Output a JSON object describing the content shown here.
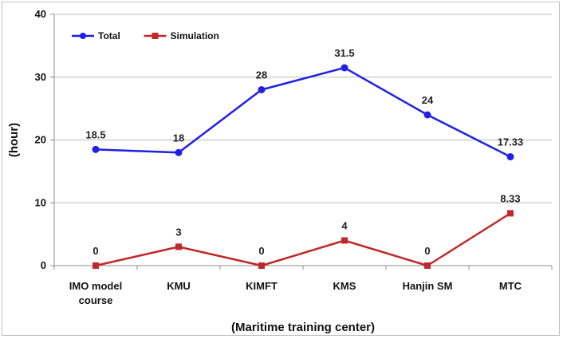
{
  "chart_data": {
    "type": "line",
    "categories": [
      [
        "IMO model",
        "course"
      ],
      [
        "KMU"
      ],
      [
        "KIMFT"
      ],
      [
        "KMS"
      ],
      [
        "Hanjin SM"
      ],
      [
        "MTC"
      ]
    ],
    "series": [
      {
        "name": "Total",
        "values": [
          18.5,
          18,
          28,
          31.5,
          24,
          17.33
        ],
        "labels": [
          "18.5",
          "18",
          "28",
          "31.5",
          "24",
          "17.33"
        ],
        "color": "#1f1fe6",
        "marker": "circle"
      },
      {
        "name": "Simulation",
        "values": [
          0,
          3,
          0,
          4,
          0,
          8.33
        ],
        "labels": [
          "0",
          "3",
          "0",
          "4",
          "0",
          "8.33"
        ],
        "color": "#c0282a",
        "marker": "square"
      }
    ],
    "xlabel": "(Maritime training center)",
    "ylabel": "(hour)",
    "ylim": [
      0,
      40
    ],
    "yticks": [
      0,
      10,
      20,
      30,
      40
    ],
    "grid": true,
    "legend": "top-left"
  }
}
